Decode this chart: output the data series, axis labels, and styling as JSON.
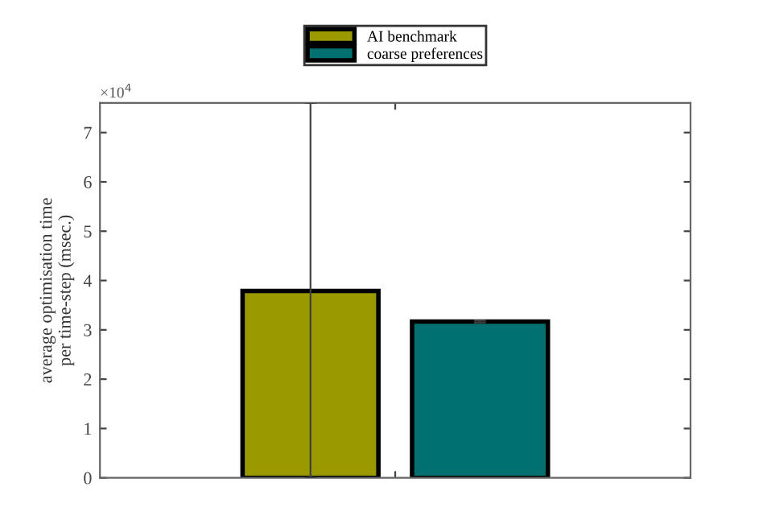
{
  "chart_data": {
    "type": "bar",
    "ylabel": "average optimisation time\nper time-step (msec.)",
    "categories": [
      null
    ],
    "series": [
      {
        "name": "AI benchmark",
        "color": "#9a9a00",
        "values": [
          3.79
        ],
        "errors": [
          [
            0,
            7.6
          ]
        ]
      },
      {
        "name": "coarse preferences",
        "color": "#007070",
        "values": [
          3.17
        ],
        "errors": [
          0.02
        ]
      }
    ],
    "ylim": [
      0,
      7.6
    ],
    "yticks": [
      0,
      1,
      2,
      3,
      4,
      5,
      6,
      7
    ],
    "annotations": [
      "×10$^{4}$"
    ],
    "legend": "top",
    "grid": false
  }
}
